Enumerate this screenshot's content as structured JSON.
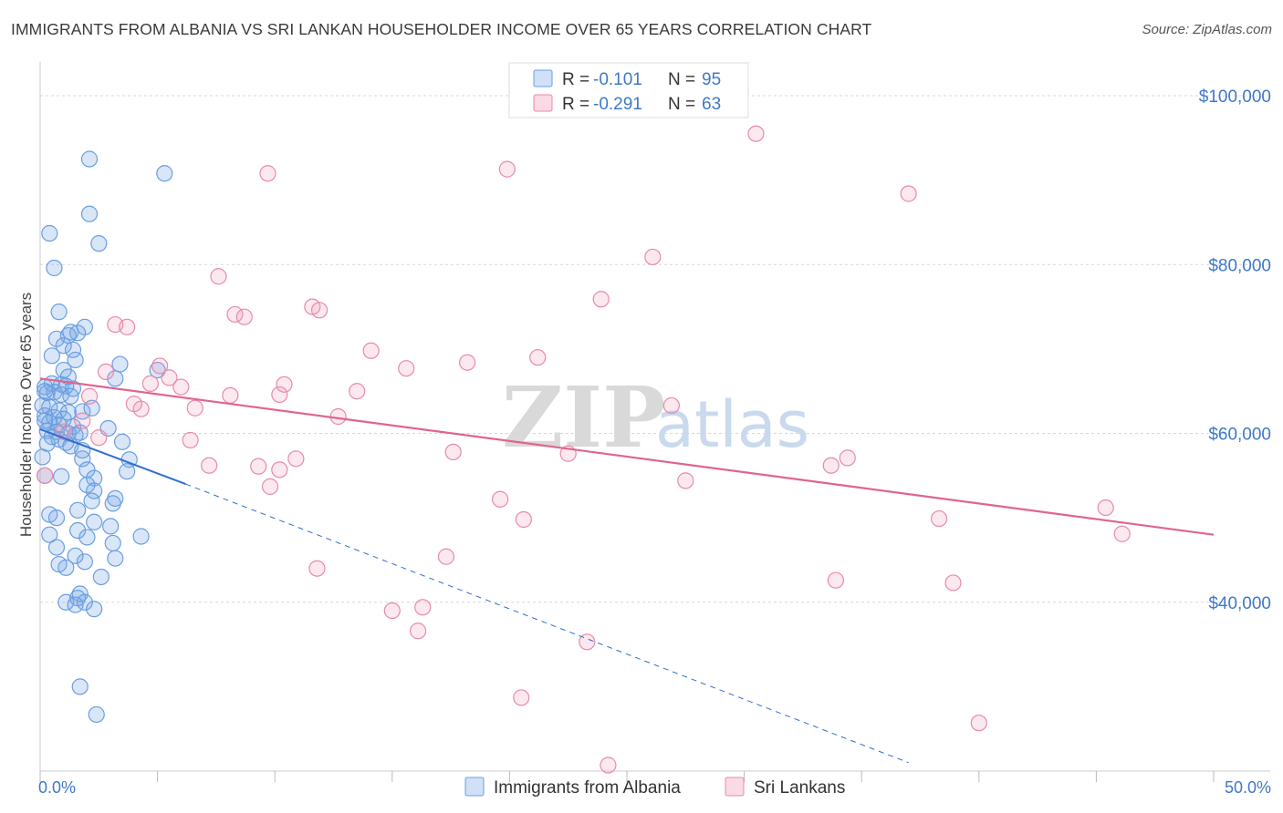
{
  "title": "IMMIGRANTS FROM ALBANIA VS SRI LANKAN HOUSEHOLDER INCOME OVER 65 YEARS CORRELATION CHART",
  "source": "Source: ZipAtlas.com",
  "watermark": {
    "zip": "ZIP",
    "atlas": "atlas"
  },
  "colors": {
    "blue": "#6a9ee0",
    "blue_fill": "rgba(120,165,230,0.28)",
    "blue_line": "#2f6fd0",
    "pink": "#e88aa8",
    "pink_fill": "rgba(240,150,180,0.22)",
    "pink_line": "#e0648f",
    "grid": "#d8d8d8",
    "axis_label": "#3f78c8"
  },
  "legend": {
    "row1": {
      "r_label": "R =",
      "r_value": "-0.101",
      "n_label": "N =",
      "n_value": "95"
    },
    "row2": {
      "r_label": "R =",
      "r_value": "-0.291",
      "n_label": "N =",
      "n_value": "63"
    }
  },
  "chart_data": {
    "type": "scatter",
    "title": "IMMIGRANTS FROM ALBANIA VS SRI LANKAN HOUSEHOLDER INCOME OVER 65 YEARS CORRELATION CHART",
    "xlabel": "",
    "ylabel": "Householder Income Over 65 years",
    "xlim": [
      0,
      50
    ],
    "ylim": [
      20000,
      104000
    ],
    "x_tick_labels": {
      "min": "0.0%",
      "max": "50.0%"
    },
    "y_ticks": [
      {
        "value": 40000,
        "label": "$40,000"
      },
      {
        "value": 60000,
        "label": "$60,000"
      },
      {
        "value": 80000,
        "label": "$80,000"
      },
      {
        "value": 100000,
        "label": "$100,000"
      }
    ],
    "series": [
      {
        "name": "Immigrants from Albania",
        "color": "blue",
        "trend": {
          "x0": 0,
          "y0": 60500,
          "x1": 6.2,
          "y1": 54000,
          "dash_x_end": 37,
          "dash_y_end": 21000
        },
        "points": [
          [
            2.1,
            92500
          ],
          [
            5.3,
            90800
          ],
          [
            2.1,
            86000
          ],
          [
            0.4,
            83700
          ],
          [
            2.5,
            82500
          ],
          [
            0.6,
            79600
          ],
          [
            0.8,
            74400
          ],
          [
            1.9,
            72600
          ],
          [
            0.7,
            71200
          ],
          [
            1.3,
            72000
          ],
          [
            1.6,
            71900
          ],
          [
            1.2,
            71600
          ],
          [
            0.5,
            69200
          ],
          [
            1.0,
            70400
          ],
          [
            1.4,
            69900
          ],
          [
            1.5,
            68700
          ],
          [
            3.4,
            68200
          ],
          [
            1.0,
            67500
          ],
          [
            1.2,
            66700
          ],
          [
            3.2,
            66500
          ],
          [
            5.0,
            67500
          ],
          [
            0.2,
            65500
          ],
          [
            0.5,
            65900
          ],
          [
            0.9,
            65800
          ],
          [
            1.1,
            65600
          ],
          [
            1.4,
            65300
          ],
          [
            0.3,
            64800
          ],
          [
            0.6,
            64900
          ],
          [
            0.9,
            64600
          ],
          [
            1.3,
            64400
          ],
          [
            0.1,
            63300
          ],
          [
            0.4,
            63100
          ],
          [
            0.8,
            62700
          ],
          [
            1.2,
            62500
          ],
          [
            1.8,
            62600
          ],
          [
            0.2,
            62100
          ],
          [
            0.6,
            61900
          ],
          [
            1.0,
            61700
          ],
          [
            0.4,
            61300
          ],
          [
            0.8,
            61000
          ],
          [
            1.4,
            60800
          ],
          [
            2.9,
            60600
          ],
          [
            0.3,
            60300
          ],
          [
            0.7,
            60200
          ],
          [
            1.2,
            60000
          ],
          [
            1.7,
            60100
          ],
          [
            0.5,
            59600
          ],
          [
            1.5,
            59800
          ],
          [
            0.8,
            59300
          ],
          [
            1.1,
            58900
          ],
          [
            0.3,
            58800
          ],
          [
            1.3,
            58500
          ],
          [
            1.8,
            58000
          ],
          [
            0.1,
            57200
          ],
          [
            1.8,
            57000
          ],
          [
            3.8,
            56900
          ],
          [
            2.0,
            55700
          ],
          [
            3.7,
            55500
          ],
          [
            0.9,
            54900
          ],
          [
            2.3,
            54700
          ],
          [
            2.0,
            53900
          ],
          [
            2.3,
            53200
          ],
          [
            3.2,
            52300
          ],
          [
            2.2,
            52000
          ],
          [
            3.1,
            51700
          ],
          [
            1.6,
            50900
          ],
          [
            0.4,
            50400
          ],
          [
            0.7,
            50000
          ],
          [
            2.3,
            49500
          ],
          [
            3.0,
            49000
          ],
          [
            1.6,
            48500
          ],
          [
            0.4,
            48000
          ],
          [
            2.0,
            47700
          ],
          [
            3.1,
            47000
          ],
          [
            4.3,
            47800
          ],
          [
            0.7,
            46500
          ],
          [
            1.5,
            45500
          ],
          [
            3.2,
            45200
          ],
          [
            0.8,
            44500
          ],
          [
            1.9,
            44800
          ],
          [
            1.1,
            44100
          ],
          [
            2.6,
            43000
          ],
          [
            1.7,
            41000
          ],
          [
            1.1,
            40000
          ],
          [
            1.6,
            40500
          ],
          [
            1.9,
            40000
          ],
          [
            2.3,
            39200
          ],
          [
            1.5,
            39700
          ],
          [
            1.7,
            30000
          ],
          [
            2.4,
            26700
          ],
          [
            0.2,
            65000
          ],
          [
            0.2,
            61500
          ],
          [
            0.2,
            55000
          ],
          [
            2.2,
            63000
          ],
          [
            3.5,
            59000
          ]
        ]
      },
      {
        "name": "Sri Lankans",
        "color": "pink",
        "trend": {
          "x0": 0,
          "y0": 66500,
          "x1": 50,
          "y1": 48000
        },
        "points": [
          [
            30.5,
            95500
          ],
          [
            19.9,
            91300
          ],
          [
            9.7,
            90800
          ],
          [
            37.0,
            88400
          ],
          [
            26.1,
            80900
          ],
          [
            7.6,
            78600
          ],
          [
            23.9,
            75900
          ],
          [
            11.6,
            75000
          ],
          [
            11.9,
            74600
          ],
          [
            8.3,
            74100
          ],
          [
            8.7,
            73800
          ],
          [
            3.2,
            72900
          ],
          [
            3.7,
            72600
          ],
          [
            14.1,
            69800
          ],
          [
            18.2,
            68400
          ],
          [
            21.2,
            69000
          ],
          [
            5.1,
            68000
          ],
          [
            10.4,
            65800
          ],
          [
            2.8,
            67300
          ],
          [
            5.5,
            66600
          ],
          [
            15.6,
            67700
          ],
          [
            4.7,
            65900
          ],
          [
            6.0,
            65500
          ],
          [
            13.5,
            65000
          ],
          [
            10.2,
            64600
          ],
          [
            8.1,
            64500
          ],
          [
            2.1,
            64400
          ],
          [
            4.3,
            62900
          ],
          [
            6.6,
            63000
          ],
          [
            12.7,
            62000
          ],
          [
            26.9,
            63300
          ],
          [
            6.4,
            59200
          ],
          [
            17.6,
            57800
          ],
          [
            22.5,
            57600
          ],
          [
            10.9,
            57000
          ],
          [
            7.2,
            56200
          ],
          [
            9.3,
            56100
          ],
          [
            10.2,
            55700
          ],
          [
            33.7,
            56200
          ],
          [
            34.4,
            57100
          ],
          [
            9.8,
            53700
          ],
          [
            27.5,
            54400
          ],
          [
            19.6,
            52200
          ],
          [
            20.6,
            49800
          ],
          [
            38.3,
            49900
          ],
          [
            45.4,
            51200
          ],
          [
            46.1,
            48100
          ],
          [
            17.3,
            45400
          ],
          [
            11.8,
            44000
          ],
          [
            33.9,
            42600
          ],
          [
            38.9,
            42300
          ],
          [
            15.0,
            39000
          ],
          [
            16.3,
            39400
          ],
          [
            16.1,
            36600
          ],
          [
            23.3,
            35300
          ],
          [
            20.5,
            28700
          ],
          [
            40.0,
            25700
          ],
          [
            24.2,
            20700
          ],
          [
            0.2,
            55000
          ],
          [
            1.0,
            60200
          ],
          [
            1.8,
            61500
          ],
          [
            4.0,
            63500
          ],
          [
            2.5,
            59500
          ]
        ]
      }
    ]
  },
  "bottom_legend": {
    "series1": "Immigrants from Albania",
    "series2": "Sri Lankans"
  }
}
